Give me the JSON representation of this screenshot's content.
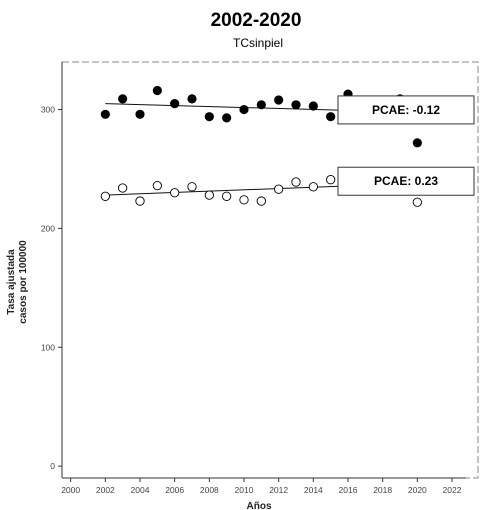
{
  "chart_data": {
    "type": "scatter",
    "title": "2002-2020",
    "subtitle": "TCsinpiel",
    "xlabel": "Años",
    "ylabel_lines": [
      "Tasa ajustada",
      "casos por 100000"
    ],
    "xlim": [
      1999.5,
      2023.5
    ],
    "ylim": [
      -10,
      340
    ],
    "x_ticks": [
      2000,
      2002,
      2004,
      2006,
      2008,
      2010,
      2012,
      2014,
      2016,
      2018,
      2020,
      2022
    ],
    "y_ticks": [
      0,
      100,
      200,
      300
    ],
    "grid": false,
    "series": [
      {
        "marker": "filled",
        "x": [
          2002,
          2003,
          2004,
          2005,
          2006,
          2007,
          2008,
          2009,
          2010,
          2011,
          2012,
          2013,
          2014,
          2015,
          2016,
          2017,
          2018,
          2019,
          2020
        ],
        "y": [
          296,
          309,
          296,
          316,
          305,
          309,
          294,
          293,
          300,
          304,
          308,
          304,
          303,
          294,
          313,
          306,
          298,
          309,
          272
        ],
        "trend": {
          "x": [
            2002,
            2019
          ],
          "y": [
            305,
            298
          ]
        },
        "annotation": "PCAE:  -0.12"
      },
      {
        "marker": "open",
        "x": [
          2002,
          2003,
          2004,
          2005,
          2006,
          2007,
          2008,
          2009,
          2010,
          2011,
          2012,
          2013,
          2014,
          2015,
          2016,
          2017,
          2018,
          2019,
          2020
        ],
        "y": [
          227,
          234,
          223,
          236,
          230,
          235,
          228,
          227,
          224,
          223,
          233,
          239,
          235,
          241,
          239,
          234,
          244,
          244,
          222
        ],
        "trend": {
          "x": [
            2002,
            2020
          ],
          "y": [
            228,
            238
          ]
        },
        "annotation": "PCAE:  0.23"
      }
    ]
  }
}
